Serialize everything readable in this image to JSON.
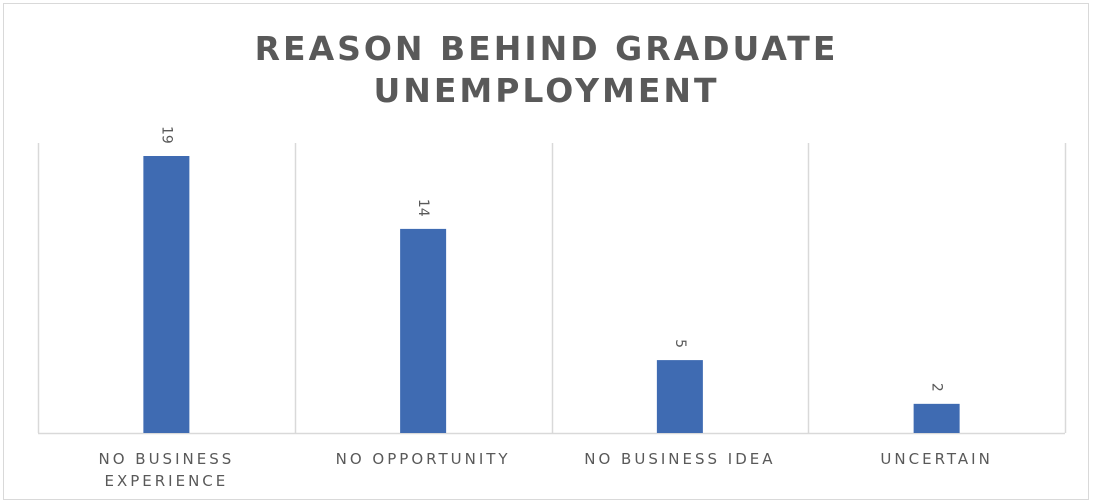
{
  "chart_data": {
    "type": "bar",
    "title_lines": [
      "REASON BEHIND GRADUATE",
      "UNEMPLOYMENT"
    ],
    "categories": [
      [
        "NO BUSINESS",
        "EXPERIENCE"
      ],
      [
        "NO OPPORTUNITY"
      ],
      [
        "NO BUSINESS IDEA"
      ],
      [
        "UNCERTAIN"
      ]
    ],
    "values": [
      19,
      14,
      5,
      2
    ],
    "bar_color": "#3F6BB2",
    "grid_color": "#d9d9d9",
    "ylim": [
      0,
      20
    ],
    "grid": "vertical category separators",
    "data_labels": "rotated, above bars"
  }
}
